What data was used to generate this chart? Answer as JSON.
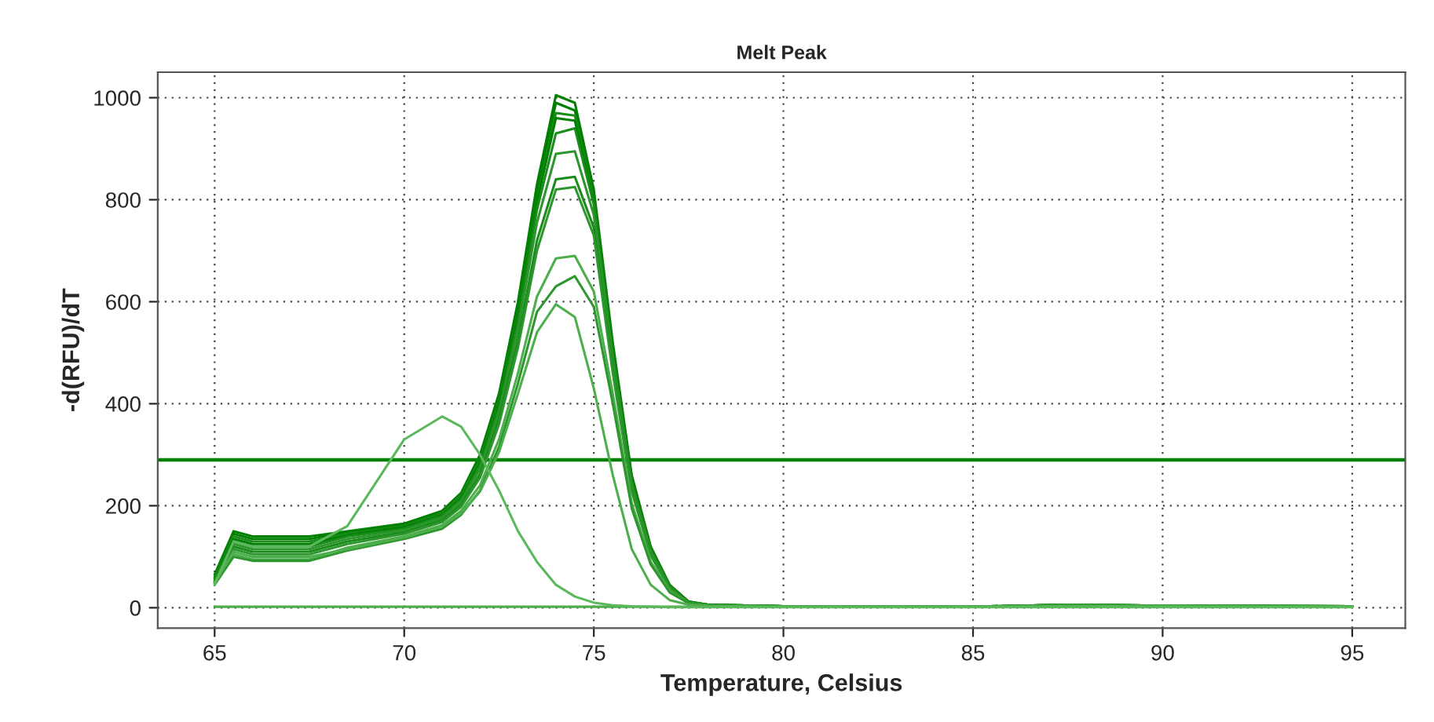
{
  "chart_data": {
    "type": "line",
    "title": "Melt Peak",
    "xlabel": "Temperature, Celsius",
    "ylabel": "-d(RFU)/dT",
    "x": [
      65,
      65.5,
      66,
      67.5,
      68.5,
      70,
      71,
      71.5,
      72,
      72.5,
      73,
      73.5,
      74,
      74.5,
      75,
      75.5,
      76,
      76.5,
      77,
      77.5,
      78,
      80,
      85,
      87.5,
      90,
      95
    ],
    "xlim": [
      63.5,
      96.4
    ],
    "ylim": [
      -40,
      1050
    ],
    "xticks": [
      65,
      70,
      75,
      80,
      85,
      90,
      95
    ],
    "yticks": [
      0,
      200,
      400,
      600,
      800,
      1000
    ],
    "grid": true,
    "line_style": "solid",
    "marker": "none",
    "ref_lines": [
      {
        "axis": "y",
        "value": 290,
        "color": "#008000"
      }
    ],
    "series": [
      {
        "color": "#008000",
        "values": [
          65,
          150,
          140,
          140,
          150,
          165,
          190,
          225,
          300,
          420,
          600,
          830,
          1005,
          990,
          820,
          520,
          260,
          120,
          45,
          12,
          6,
          3,
          2,
          6,
          4,
          3
        ]
      },
      {
        "color": "#008000",
        "values": [
          60,
          145,
          135,
          135,
          148,
          163,
          188,
          222,
          295,
          415,
          590,
          815,
          990,
          975,
          805,
          510,
          255,
          118,
          44,
          12,
          6,
          3,
          2,
          6,
          4,
          3
        ]
      },
      {
        "color": "#1a8c1a",
        "values": [
          58,
          140,
          130,
          130,
          145,
          160,
          185,
          220,
          290,
          405,
          575,
          800,
          970,
          965,
          800,
          505,
          250,
          115,
          43,
          11,
          6,
          3,
          2,
          6,
          4,
          3
        ]
      },
      {
        "color": "#008000",
        "values": [
          55,
          135,
          125,
          125,
          142,
          158,
          182,
          215,
          285,
          400,
          570,
          795,
          960,
          955,
          795,
          500,
          248,
          113,
          42,
          11,
          6,
          3,
          2,
          6,
          4,
          3
        ]
      },
      {
        "color": "#1a8c1a",
        "values": [
          55,
          130,
          120,
          120,
          140,
          155,
          180,
          212,
          280,
          392,
          560,
          780,
          930,
          940,
          790,
          495,
          245,
          112,
          42,
          11,
          6,
          3,
          2,
          6,
          4,
          3
        ]
      },
      {
        "color": "#2e962e",
        "values": [
          52,
          125,
          115,
          115,
          135,
          152,
          176,
          208,
          272,
          382,
          545,
          755,
          890,
          895,
          770,
          485,
          240,
          110,
          40,
          10,
          5,
          3,
          2,
          6,
          4,
          3
        ]
      },
      {
        "color": "#1a8c1a",
        "values": [
          50,
          120,
          110,
          110,
          130,
          148,
          172,
          202,
          262,
          370,
          525,
          720,
          840,
          845,
          745,
          470,
          232,
          105,
          38,
          10,
          5,
          3,
          2,
          5,
          4,
          3
        ]
      },
      {
        "color": "#2e962e",
        "values": [
          50,
          115,
          105,
          105,
          125,
          145,
          168,
          198,
          255,
          360,
          510,
          700,
          820,
          825,
          730,
          460,
          228,
          102,
          37,
          10,
          5,
          3,
          2,
          5,
          4,
          3
        ]
      },
      {
        "color": "#4caf4c",
        "values": [
          48,
          105,
          95,
          95,
          118,
          140,
          162,
          190,
          240,
          330,
          460,
          610,
          685,
          690,
          620,
          420,
          205,
          90,
          33,
          9,
          5,
          3,
          2,
          5,
          4,
          3
        ]
      },
      {
        "color": "#2e962e",
        "values": [
          45,
          100,
          92,
          92,
          112,
          135,
          155,
          182,
          230,
          315,
          440,
          580,
          630,
          650,
          590,
          400,
          195,
          85,
          30,
          9,
          5,
          3,
          2,
          5,
          3,
          3
        ]
      },
      {
        "color": "#4caf4c",
        "values": [
          48,
          110,
          100,
          100,
          115,
          138,
          160,
          185,
          228,
          305,
          420,
          540,
          595,
          570,
          430,
          260,
          115,
          45,
          15,
          6,
          4,
          2,
          2,
          4,
          3,
          2
        ]
      },
      {
        "color": "#4caf4c",
        "values": [
          2,
          2,
          2,
          2,
          2,
          2,
          2,
          2,
          2,
          2,
          2,
          2,
          2,
          2,
          2,
          2,
          2,
          2,
          2,
          2,
          2,
          2,
          2,
          2,
          2,
          2
        ]
      },
      {
        "color": "#5cb85c",
        "values": [
          45,
          130,
          120,
          120,
          160,
          330,
          375,
          355,
          300,
          230,
          150,
          90,
          45,
          22,
          10,
          5,
          3,
          2,
          1,
          1,
          1,
          1,
          1,
          1,
          1,
          1
        ]
      }
    ]
  }
}
